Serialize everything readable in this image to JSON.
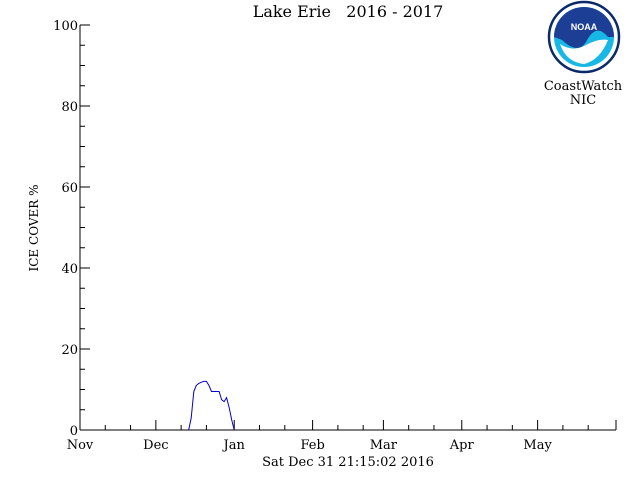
{
  "chart_data": {
    "type": "line",
    "title": "Lake Erie   2016 - 2017",
    "xlabel": "",
    "ylabel": "ICE COVER %",
    "ylim": [
      0,
      100
    ],
    "yticks": [
      "0",
      "20",
      "40",
      "60",
      "80",
      "100"
    ],
    "x_categories": [
      "Nov",
      "Dec",
      "Jan",
      "Feb",
      "Mar",
      "Apr",
      "May"
    ],
    "x_unit": "day since Nov 1",
    "xlim": [
      0,
      212
    ],
    "grid": false,
    "legend": "none",
    "series": [
      {
        "color": "#0000cc",
        "x": [
          43,
          44,
          45,
          46,
          47,
          48,
          49,
          50,
          51,
          52,
          53,
          54,
          55,
          56,
          57,
          58,
          59,
          60,
          61
        ],
        "y": [
          0,
          3,
          9.5,
          11,
          11.5,
          11.8,
          12,
          12,
          11,
          9.5,
          9.5,
          9.5,
          9.5,
          7.5,
          7,
          8,
          5.5,
          2.5,
          0
        ]
      }
    ]
  },
  "caption": "Sat Dec 31 21:15:02 2016",
  "logo": {
    "text": "NOAA",
    "org_line1": "CoastWatch",
    "org_line2": "NIC",
    "colors": {
      "navy": "#1c3f95",
      "cyan": "#18b8e6",
      "ring": "#0a2a6b"
    }
  }
}
